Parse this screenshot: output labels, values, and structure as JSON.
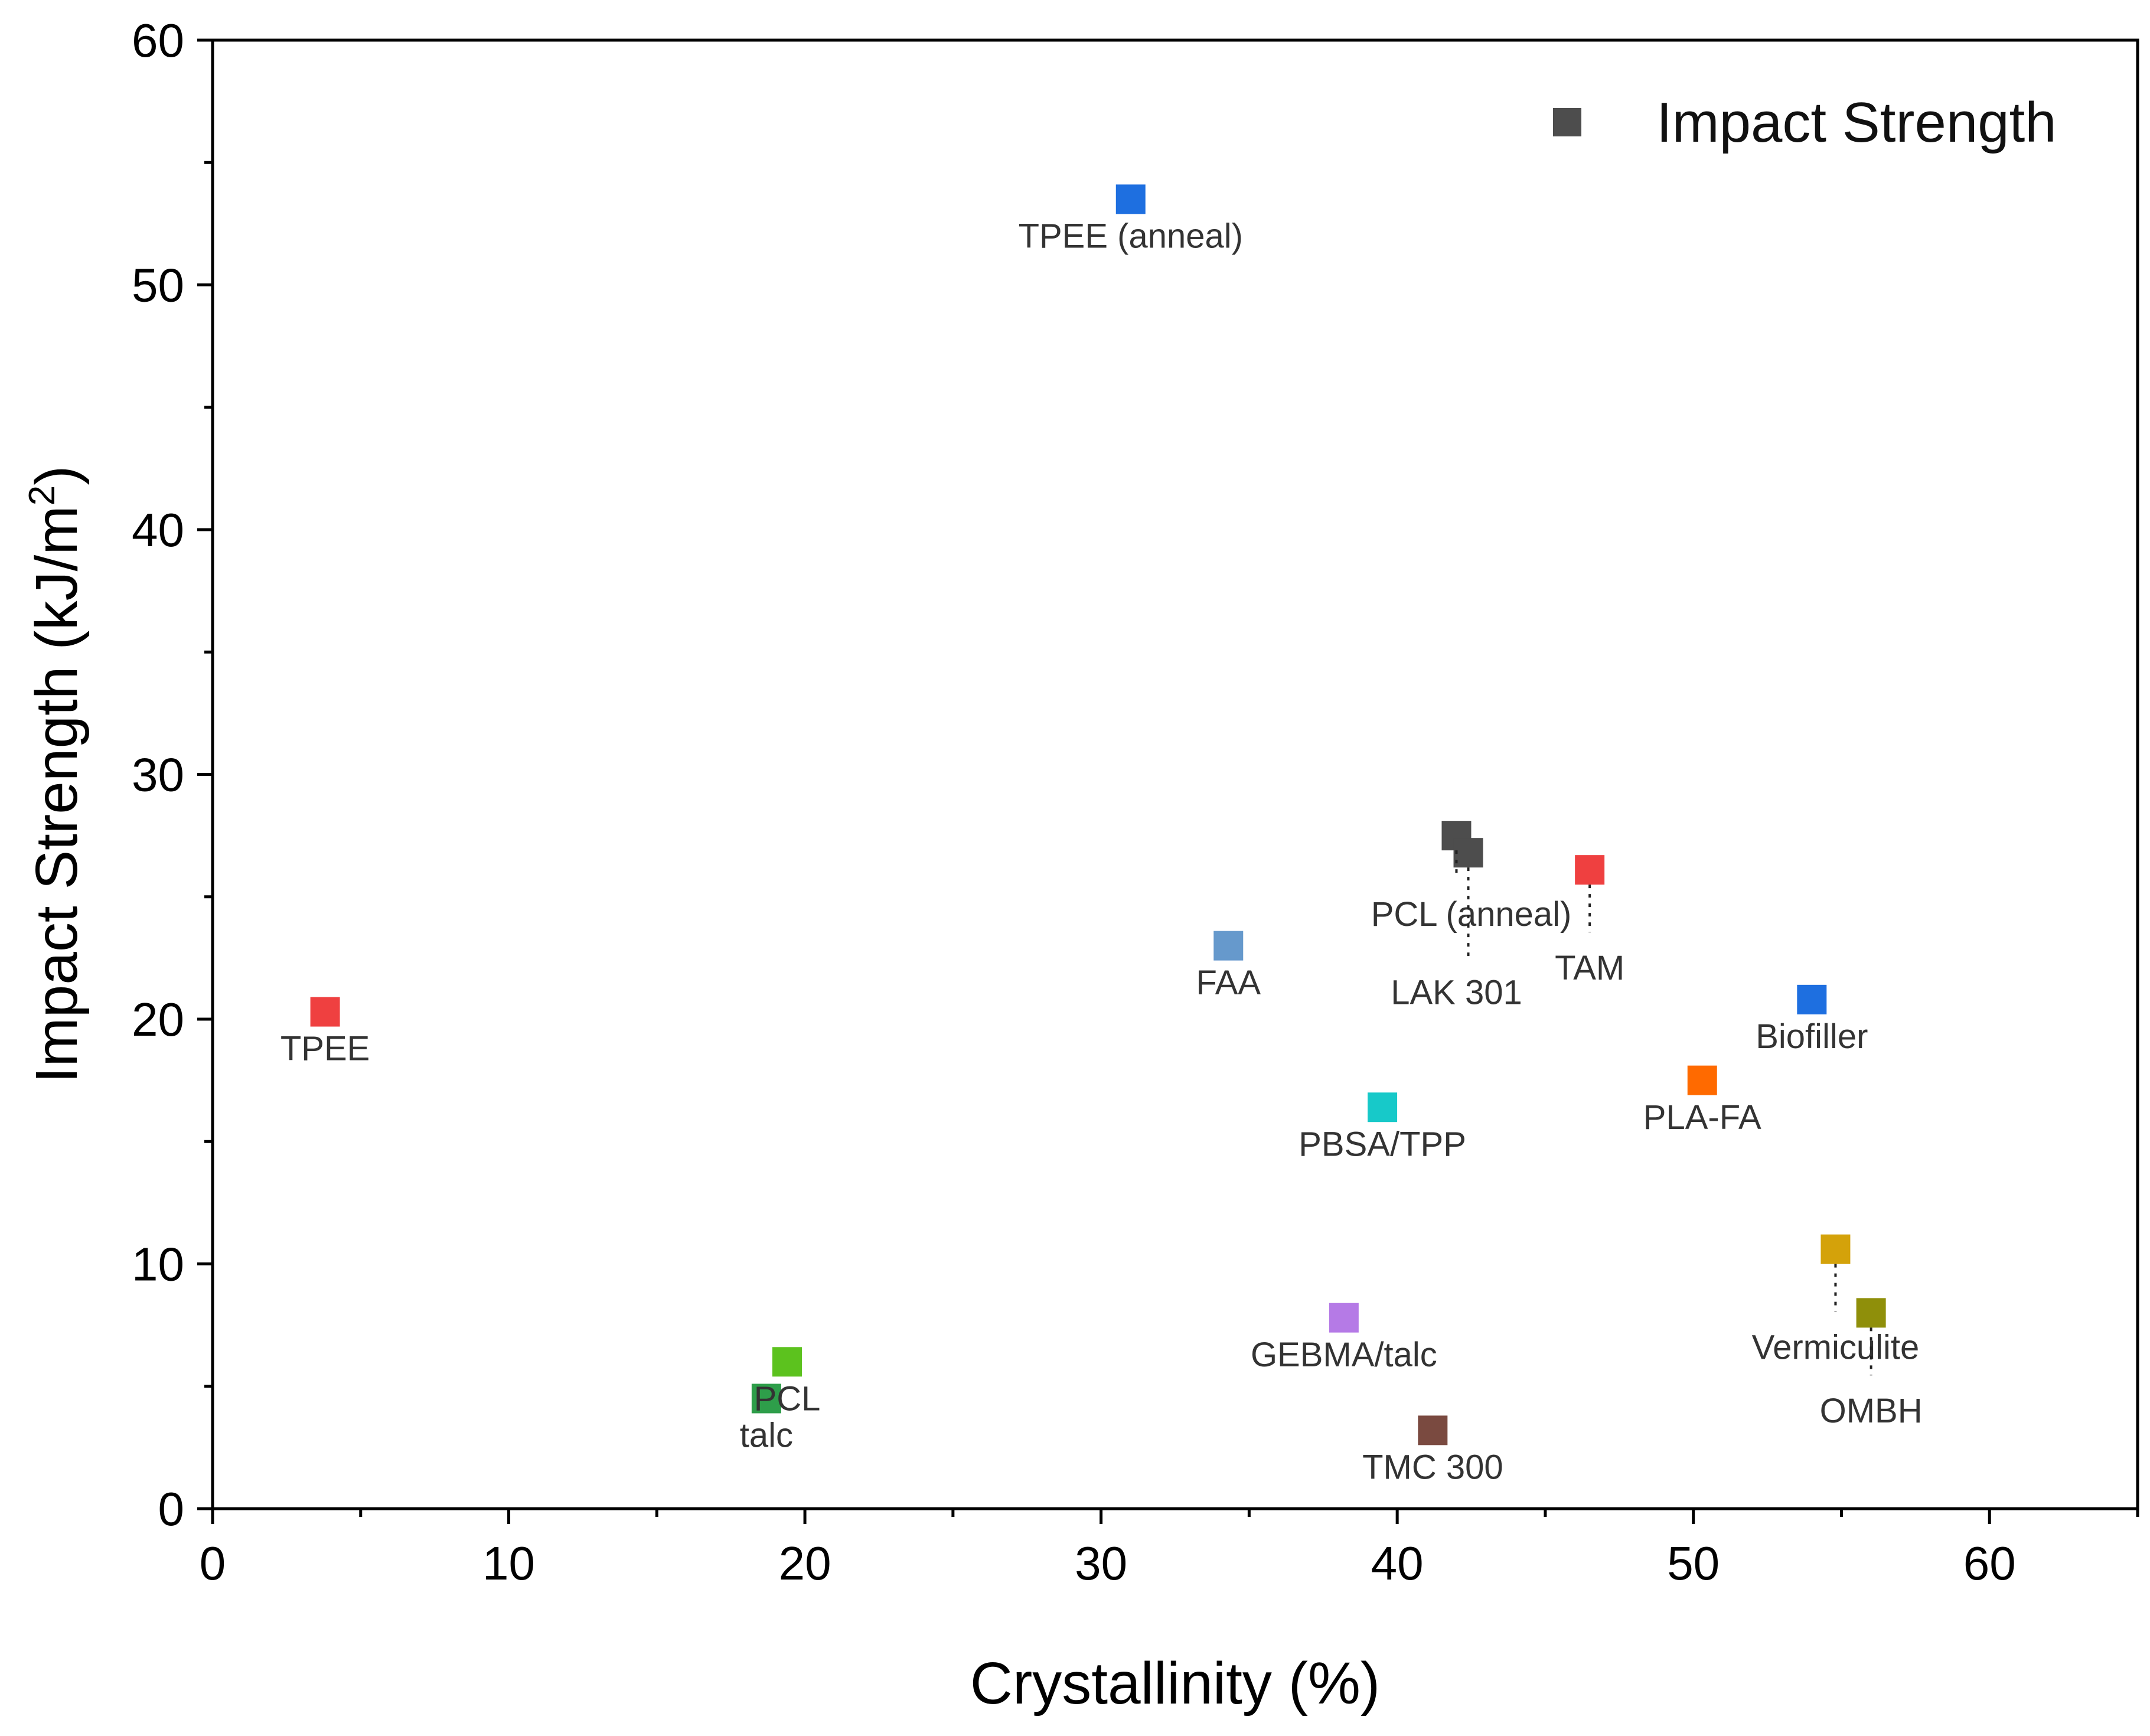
{
  "chart_data": {
    "type": "scatter",
    "xlabel": "Crystallinity (%)",
    "ylabel": "Impact Strength (kJ/m",
    "ylabel_sup": "2",
    "ylabel_end": ")",
    "xlim": [
      0,
      65
    ],
    "ylim": [
      0,
      60
    ],
    "xticks": [
      0,
      10,
      20,
      30,
      40,
      50,
      60
    ],
    "yticks": [
      0,
      10,
      20,
      30,
      40,
      50,
      60
    ],
    "xtick_labels": [
      "0",
      "10",
      "20",
      "30",
      "40",
      "50",
      "60"
    ],
    "ytick_labels": [
      "0",
      "10",
      "20",
      "30",
      "40",
      "50",
      "60"
    ],
    "grid": false,
    "legend": {
      "label": "Impact Strength",
      "color": "#4d4d4d",
      "position": "top-right"
    },
    "points": [
      {
        "label": "TPEE",
        "x": 3.8,
        "y": 20.3,
        "color": "#ef4040",
        "label_dx": 0,
        "label_dy": -1.5
      },
      {
        "label": "TPEE (anneal)",
        "x": 31.0,
        "y": 53.5,
        "color": "#1e6fe0",
        "label_dx": 0,
        "label_dy": -1.5
      },
      {
        "label": "FAA",
        "x": 34.3,
        "y": 23.0,
        "color": "#6699cc",
        "label_dx": 0,
        "label_dy": -1.5
      },
      {
        "label": "PCL (anneal)",
        "x": 42.0,
        "y": 27.5,
        "color": "#4d4d4d",
        "label_dx": 0.5,
        "label_dy": -3.2,
        "leader": true
      },
      {
        "label": "LAK 301",
        "x": 42.4,
        "y": 26.8,
        "color": "#4d4d4d",
        "label_dx": -0.4,
        "label_dy": -5.7,
        "leader": true
      },
      {
        "label": "TAM",
        "x": 46.5,
        "y": 26.1,
        "color": "#ef4040",
        "label_dx": 0,
        "label_dy": -4.0,
        "leader": true
      },
      {
        "label": "Biofiller",
        "x": 54.0,
        "y": 20.8,
        "color": "#1e6fe0",
        "label_dx": 0,
        "label_dy": -1.5
      },
      {
        "label": "PLA-FA",
        "x": 50.3,
        "y": 17.5,
        "color": "#ff6a00",
        "label_dx": 0,
        "label_dy": -1.5
      },
      {
        "label": "PBSA/TPP",
        "x": 39.5,
        "y": 16.4,
        "color": "#17c9c9",
        "label_dx": 0,
        "label_dy": -1.5
      },
      {
        "label": "Vermiculite",
        "x": 54.8,
        "y": 10.6,
        "color": "#d4a20a",
        "label_dx": 0,
        "label_dy": -4.0,
        "leader": true
      },
      {
        "label": "OMBH",
        "x": 56.0,
        "y": 8.0,
        "color": "#8f8f0a",
        "label_dx": 0,
        "label_dy": -4.0,
        "leader": true
      },
      {
        "label": "GEBMA/talc",
        "x": 38.2,
        "y": 7.8,
        "color": "#b57ae6",
        "label_dx": 0,
        "label_dy": -1.5
      },
      {
        "label": "PCL",
        "x": 19.4,
        "y": 6.0,
        "color": "#5cc21e",
        "label_dx": 0,
        "label_dy": -1.5
      },
      {
        "label": "talc",
        "x": 18.7,
        "y": 4.5,
        "color": "#2e9e4a",
        "label_dx": 0,
        "label_dy": -1.5
      },
      {
        "label": "TMC 300",
        "x": 41.2,
        "y": 3.2,
        "color": "#7a4a40",
        "label_dx": 0,
        "label_dy": -1.5
      }
    ]
  }
}
